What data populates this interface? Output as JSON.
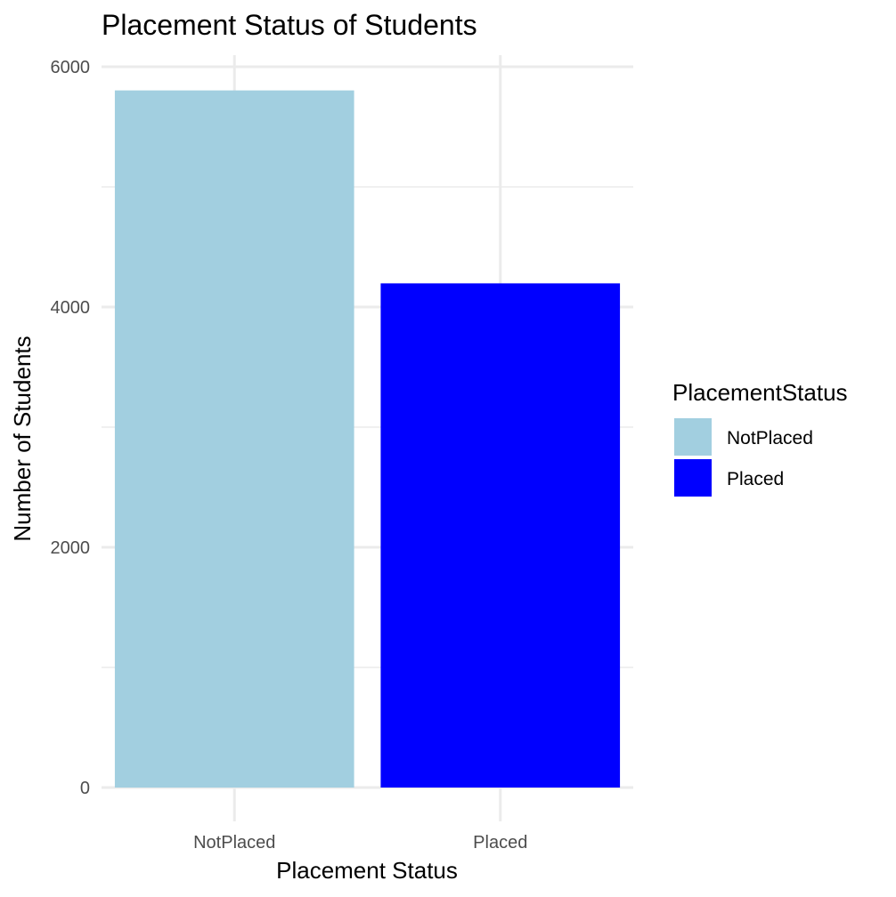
{
  "chart_data": {
    "type": "bar",
    "title": "Placement Status of Students",
    "xlabel": "Placement Status",
    "ylabel": "Number of Students",
    "categories": [
      "NotPlaced",
      "Placed"
    ],
    "values": [
      5803,
      4197
    ],
    "colors": [
      "#a2cfe0",
      "#0000ff"
    ],
    "ylim": [
      0,
      6000
    ],
    "yticks": [
      0,
      2000,
      4000,
      6000
    ],
    "ytick_labels": [
      "0",
      "2000",
      "4000",
      "6000"
    ],
    "grid": true,
    "legend": {
      "title": "PlacementStatus",
      "placement": "right",
      "entries": [
        "NotPlaced",
        "Placed"
      ]
    }
  }
}
